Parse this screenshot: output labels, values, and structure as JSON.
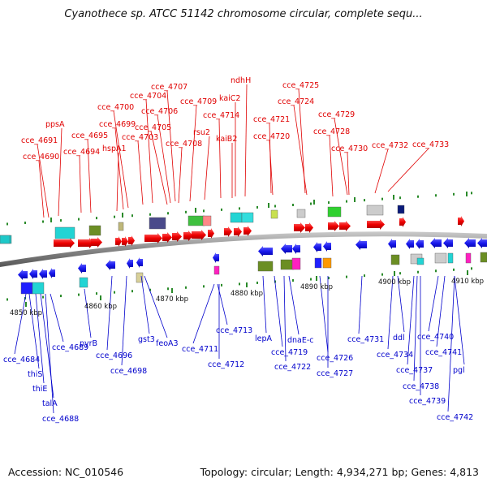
{
  "title": "Cyanothece sp. ATCC 51142 chromosome circular, complete sequ...",
  "footer": {
    "accession": "Accession: NC_010546",
    "summary": "Topology: circular; Length: 4,934,271 bp; Genes: 4,813"
  },
  "colors": {
    "top_label": "#e00000",
    "bottom_label": "#0000cc",
    "backbone": "#888888"
  },
  "scale_labels": [
    {
      "text": "4850 kbp"
    },
    {
      "text": "4860 kbp"
    },
    {
      "text": "4870 kbp"
    },
    {
      "text": "4880 kbp"
    },
    {
      "text": "4890 kbp"
    },
    {
      "text": "4900 kbp"
    },
    {
      "text": "4910 kbp"
    }
  ],
  "top_labels": [
    "cce_4690",
    "cce_4691",
    "ppsA",
    "cce_4694",
    "cce_4695",
    "hspA1",
    "cce_4699",
    "cce_4700",
    "cce_4703",
    "cce_4704",
    "cce_4705",
    "cce_4706",
    "cce_4707",
    "cce_4708",
    "cce_4709",
    "rsu2",
    "cce_4714",
    "kaiB2",
    "kaiC2",
    "ndhH",
    "cce_4720",
    "cce_4721",
    "cce_4724",
    "cce_4725",
    "cce_4728",
    "cce_4729",
    "cce_4730",
    "cce_4732",
    "cce_4733"
  ],
  "bottom_labels": [
    "cce_4684",
    "thiS",
    "thiE",
    "talA",
    "cce_4688",
    "cce_4689",
    "pyrB",
    "cce_4696",
    "cce_4698",
    "gst3",
    "feoA3",
    "cce_4711",
    "cce_4712",
    "cce_4713",
    "lepA",
    "cce_4719",
    "cce_4722",
    "dnaE-c",
    "cce_4726",
    "cce_4727",
    "cce_4731",
    "cce_4734",
    "ddl",
    "cce_4737",
    "cce_4738",
    "cce_4739",
    "cce_4740",
    "cce_4741",
    "pgl",
    "cce_4742"
  ]
}
